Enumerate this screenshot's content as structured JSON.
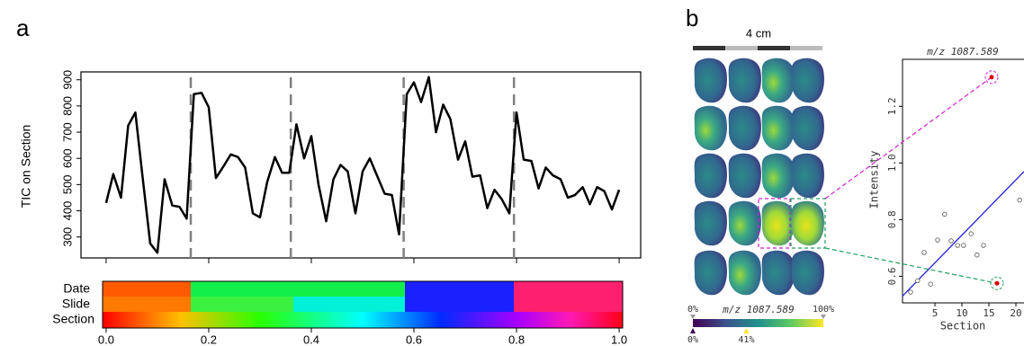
{
  "chart_data": [
    {
      "type": "line",
      "panel_label": "a",
      "ylabel": "TIC on Section",
      "bands": [
        "Date",
        "Slide",
        "Section"
      ],
      "x": [
        0,
        0.014,
        0.029,
        0.043,
        0.057,
        0.071,
        0.086,
        0.1,
        0.114,
        0.129,
        0.143,
        0.157,
        0.171,
        0.186,
        0.2,
        0.214,
        0.229,
        0.243,
        0.257,
        0.271,
        0.286,
        0.3,
        0.314,
        0.329,
        0.343,
        0.357,
        0.371,
        0.386,
        0.4,
        0.414,
        0.429,
        0.443,
        0.457,
        0.471,
        0.486,
        0.5,
        0.514,
        0.529,
        0.543,
        0.557,
        0.571,
        0.586,
        0.6,
        0.614,
        0.629,
        0.643,
        0.657,
        0.671,
        0.686,
        0.7,
        0.714,
        0.729,
        0.743,
        0.757,
        0.771,
        0.786,
        0.8,
        0.814,
        0.829,
        0.843,
        0.857,
        0.871,
        0.886,
        0.9,
        0.914,
        0.929,
        0.943,
        0.957,
        0.971,
        0.986,
        1.0
      ],
      "values": [
        430,
        540,
        450,
        725,
        775,
        530,
        275,
        240,
        520,
        420,
        415,
        370,
        845,
        850,
        795,
        525,
        570,
        615,
        605,
        565,
        390,
        375,
        510,
        605,
        545,
        545,
        730,
        600,
        685,
        500,
        360,
        520,
        575,
        550,
        390,
        550,
        600,
        530,
        465,
        460,
        310,
        845,
        890,
        815,
        910,
        700,
        805,
        750,
        595,
        665,
        530,
        535,
        410,
        480,
        445,
        390,
        775,
        595,
        590,
        485,
        565,
        535,
        520,
        450,
        460,
        490,
        425,
        490,
        475,
        405,
        480
      ],
      "color": "#000000",
      "vlines": [
        0.165,
        0.36,
        0.58,
        0.795
      ],
      "xlim": [
        -0.049,
        1.042
      ],
      "ylim": [
        220,
        930
      ],
      "xticks": [
        {
          "value": 0,
          "label": "0.0"
        },
        0.2,
        0.4,
        0.6,
        0.8,
        {
          "value": 1,
          "label": "1.0"
        }
      ],
      "yticks": [
        300,
        400,
        500,
        600,
        700,
        800,
        900
      ]
    },
    {
      "type": "scatter",
      "panel_label": "b",
      "scale_label": "4 cm",
      "title": "m/z 1087.589",
      "xlabel": "Section",
      "ylabel": "Intensity",
      "colorbar": {
        "label": "m/z 1087.589",
        "ticks": [
          {
            "value": 0,
            "label": "0%"
          },
          {
            "value": 100,
            "label": "100%"
          }
        ],
        "markers": [
          {
            "value": 0,
            "label": "0%"
          },
          {
            "value": 41,
            "label": "41%"
          }
        ]
      },
      "series": [
        {
          "color": "#555555",
          "x": [
            0.5,
            1.8,
            3,
            4.2,
            5.5,
            6.8,
            8,
            9.2,
            10.3,
            11.7,
            12.8,
            14,
            20.7
          ],
          "values": [
            0.544,
            0.584,
            0.684,
            0.572,
            0.728,
            0.819,
            0.725,
            0.709,
            0.709,
            0.75,
            0.675,
            0.709,
            0.869
          ]
        },
        {
          "color": "#e00000",
          "x": [
            15.5,
            16.5
          ],
          "values": [
            1.303,
            0.575
          ]
        }
      ],
      "fit": {
        "color": "#1f1fd6",
        "x": [
          -1,
          21.5
        ],
        "values": [
          0.53,
          0.97
        ]
      },
      "xlim": [
        -1,
        21.5
      ],
      "ylim": [
        0.506,
        1.366
      ],
      "xticks": [
        5,
        10,
        15,
        20
      ],
      "yticks": [
        0.6,
        0.8,
        {
          "value": 1,
          "label": "1.0"
        },
        1.2
      ]
    }
  ]
}
